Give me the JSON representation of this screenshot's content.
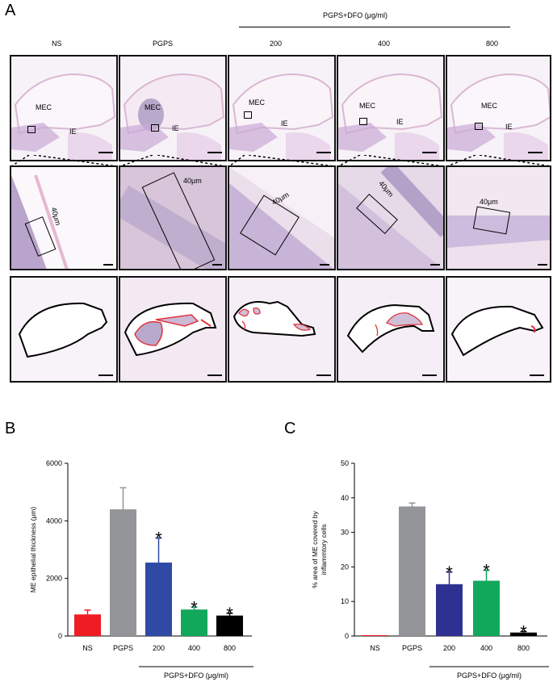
{
  "panel_a": {
    "letter": "A",
    "group_label": "PGPS+DFO (μg/ml)",
    "columns": [
      "NS",
      "PGPS",
      "200",
      "400",
      "800"
    ],
    "labels": {
      "mec": "MEC",
      "ie": "IE",
      "thickness": "40μm"
    }
  },
  "panel_b": {
    "letter": "B"
  },
  "panel_c": {
    "letter": "C"
  },
  "chart_data": [
    {
      "type": "bar",
      "categories": [
        "NS",
        "PGPS",
        "200",
        "400",
        "800"
      ],
      "values": [
        750,
        4400,
        2550,
        920,
        710
      ],
      "errors": [
        150,
        750,
        850,
        80,
        80
      ],
      "significant": [
        "",
        "",
        "*",
        "*",
        "*"
      ],
      "colors": [
        "#ef1c24",
        "#939598",
        "#2e4aa4",
        "#12a85b",
        "#000000"
      ],
      "ylabel": "ME epithelial thickness (μm)",
      "xlabel": "PGPS+DFO (μg/ml)",
      "ylim": [
        0,
        6000
      ],
      "yticks": [
        "0",
        "2000",
        "4000",
        "6000"
      ]
    },
    {
      "type": "bar",
      "categories": [
        "NS",
        "PGPS",
        "200",
        "400",
        "800"
      ],
      "values": [
        0,
        37.5,
        15,
        16,
        1
      ],
      "errors": [
        0,
        1,
        3.5,
        3,
        0.3
      ],
      "significant": [
        "",
        "",
        "*",
        "*",
        "*"
      ],
      "colors": [
        "#ef1c24",
        "#939598",
        "#2e3192",
        "#12a85b",
        "#000000"
      ],
      "ylabel": "% area of ME covered by inflammtory cells",
      "ylabel_lines": [
        "% area of ME covered by",
        "inflammtory cells"
      ],
      "xlabel": "PGPS+DFO (μg/ml)",
      "ylim": [
        0,
        50
      ],
      "yticks": [
        "0",
        "10",
        "20",
        "30",
        "40",
        "50"
      ]
    }
  ]
}
